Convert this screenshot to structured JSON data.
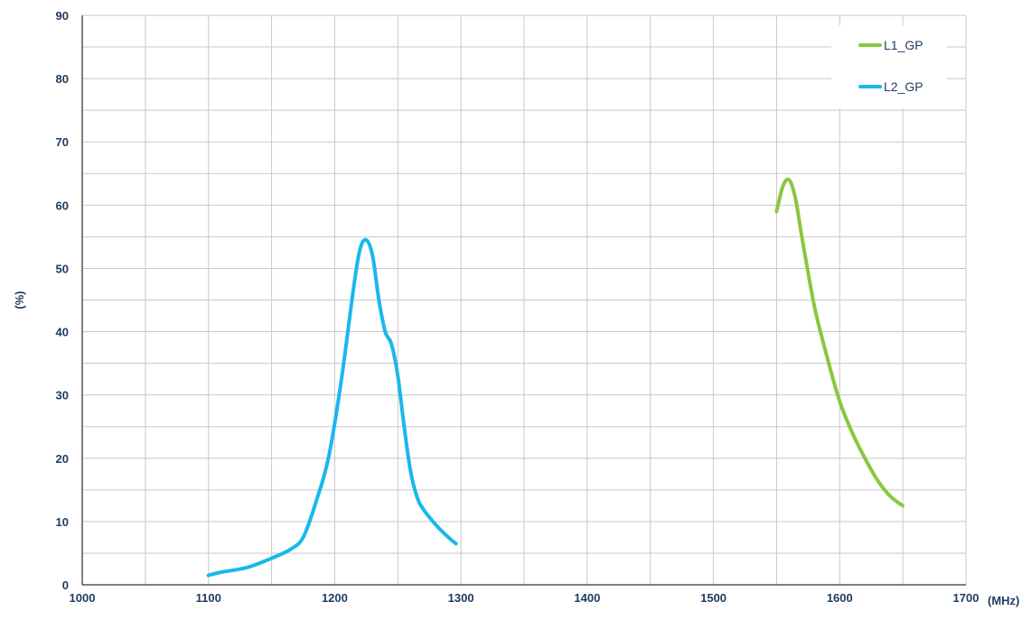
{
  "chart_data": {
    "type": "line",
    "title": "",
    "xlabel": "(MHz)",
    "ylabel": "(%)",
    "xlim": [
      1000,
      1700
    ],
    "ylim": [
      0,
      90
    ],
    "x_ticks": [
      1000,
      1100,
      1200,
      1300,
      1400,
      1500,
      1600,
      1700
    ],
    "y_ticks": [
      0,
      10,
      20,
      30,
      40,
      50,
      60,
      70,
      80,
      90
    ],
    "x_minor_step": 50,
    "y_minor_step": 5,
    "grid": true,
    "legend_position": "top-right",
    "series": [
      {
        "name": "L1_GP",
        "color": "#8cc63f",
        "x": [
          1550,
          1555,
          1560,
          1565,
          1570,
          1580,
          1590,
          1600,
          1610,
          1620,
          1630,
          1640,
          1650
        ],
        "y": [
          59,
          63,
          64,
          61,
          55,
          44,
          36,
          29,
          24,
          20,
          16.5,
          14,
          12.5
        ]
      },
      {
        "name": "L2_GP",
        "color": "#1ab8ea",
        "x": [
          1100,
          1110,
          1130,
          1150,
          1165,
          1175,
          1185,
          1195,
          1205,
          1215,
          1220,
          1225,
          1230,
          1235,
          1240,
          1245,
          1250,
          1255,
          1260,
          1265,
          1270,
          1280,
          1290,
          1296
        ],
        "y": [
          1.5,
          2,
          2.7,
          4.2,
          5.6,
          7.5,
          13,
          20,
          32,
          47,
          53,
          54.5,
          52,
          45,
          40,
          38,
          33,
          25,
          18,
          14,
          12,
          9.5,
          7.5,
          6.5
        ]
      }
    ]
  }
}
